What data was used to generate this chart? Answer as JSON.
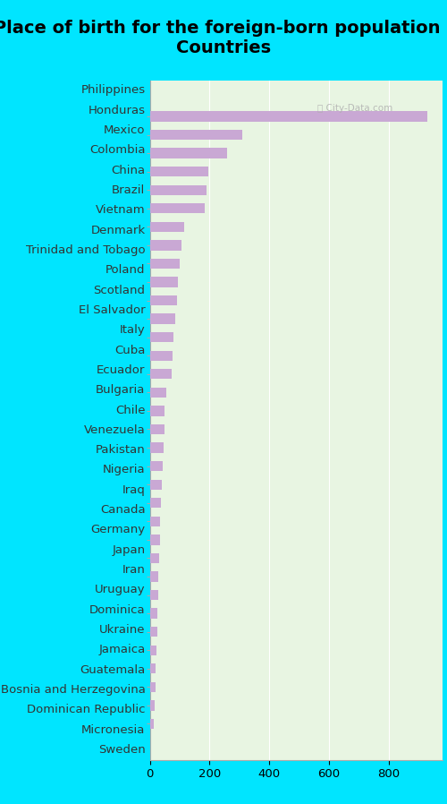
{
  "title": "Place of birth for the foreign-born population -\nCountries",
  "categories": [
    "Philippines",
    "Honduras",
    "Mexico",
    "Colombia",
    "China",
    "Brazil",
    "Vietnam",
    "Denmark",
    "Trinidad and Tobago",
    "Poland",
    "Scotland",
    "El Salvador",
    "Italy",
    "Cuba",
    "Ecuador",
    "Bulgaria",
    "Chile",
    "Venezuela",
    "Pakistan",
    "Nigeria",
    "Iraq",
    "Canada",
    "Germany",
    "Japan",
    "Iran",
    "Uruguay",
    "Dominica",
    "Ukraine",
    "Jamaica",
    "Guatemala",
    "Bosnia and Herzegovina",
    "Dominican Republic",
    "Micronesia",
    "Sweden"
  ],
  "values": [
    930,
    310,
    260,
    195,
    190,
    185,
    115,
    105,
    100,
    95,
    90,
    85,
    80,
    75,
    72,
    55,
    50,
    48,
    45,
    42,
    40,
    38,
    35,
    33,
    30,
    28,
    27,
    26,
    25,
    22,
    20,
    18,
    15,
    12
  ],
  "bar_color": "#c9a8d4",
  "chart_bg_color": "#e8f5e2",
  "cyan_color": "#00e5ff",
  "xlim": [
    0,
    980
  ],
  "xticks": [
    0,
    200,
    400,
    600,
    800
  ],
  "title_fontsize": 14,
  "label_fontsize": 9.5,
  "tick_fontsize": 9.5,
  "watermark": "City-Data.com"
}
